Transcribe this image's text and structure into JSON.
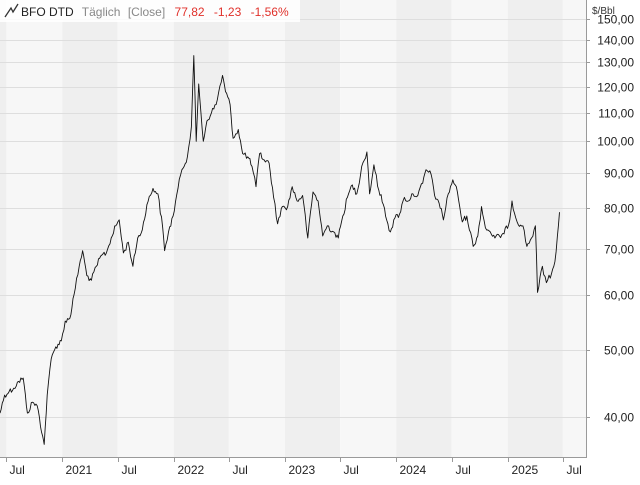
{
  "header": {
    "symbol": "BFO DTD",
    "interval": "Täglich",
    "mode": "[Close]",
    "last": "77,82",
    "change": "-1,23",
    "change_pct": "-1,56%",
    "unit": "$/Bbl"
  },
  "colors": {
    "negative": "#e0302a",
    "muted": "#888888",
    "line": "#111111",
    "band_dark": "#efefef",
    "band_light": "#f7f7f7",
    "grid": "#dedede"
  },
  "chart_data": {
    "type": "line",
    "title": "BFO DTD",
    "ylabel": "$/Bbl",
    "y_scale": "log",
    "ylim": [
      35,
      160
    ],
    "y_ticks": [
      40,
      50,
      60,
      70,
      80,
      90,
      100,
      110,
      120,
      130,
      140,
      150
    ],
    "y_tick_labels": [
      "40,00",
      "50,00",
      "60,00",
      "70,00",
      "80,00",
      "90,00",
      "100,00",
      "110,00",
      "120,00",
      "130,00",
      "140,00",
      "150,00"
    ],
    "x_ticks": [
      {
        "date": "2020-07-01",
        "label": "Jul"
      },
      {
        "date": "2021-01-01",
        "label": "2021"
      },
      {
        "date": "2021-07-01",
        "label": "Jul"
      },
      {
        "date": "2022-01-01",
        "label": "2022"
      },
      {
        "date": "2022-07-01",
        "label": "Jul"
      },
      {
        "date": "2023-01-01",
        "label": "2023"
      },
      {
        "date": "2023-07-01",
        "label": "Jul"
      },
      {
        "date": "2024-01-01",
        "label": "2024"
      },
      {
        "date": "2024-07-01",
        "label": "Jul"
      },
      {
        "date": "2025-01-01",
        "label": "2025"
      },
      {
        "date": "2025-07-01",
        "label": "Jul"
      }
    ],
    "xlim": [
      "2020-06-10",
      "2025-09-15"
    ],
    "series": [
      {
        "values": [
          [
            "2020-06-10",
            40.5
          ],
          [
            "2020-06-25",
            43.0
          ],
          [
            "2020-07-10",
            43.5
          ],
          [
            "2020-07-25",
            44.0
          ],
          [
            "2020-08-10",
            45.0
          ],
          [
            "2020-08-25",
            45.5
          ],
          [
            "2020-09-08",
            40.5
          ],
          [
            "2020-09-25",
            42.0
          ],
          [
            "2020-10-10",
            41.5
          ],
          [
            "2020-10-28",
            37.5
          ],
          [
            "2020-11-02",
            36.5
          ],
          [
            "2020-11-12",
            43.0
          ],
          [
            "2020-11-25",
            48.5
          ],
          [
            "2020-12-10",
            50.5
          ],
          [
            "2020-12-28",
            51.5
          ],
          [
            "2021-01-10",
            55.0
          ],
          [
            "2021-01-25",
            55.5
          ],
          [
            "2021-02-08",
            60.0
          ],
          [
            "2021-02-25",
            66.0
          ],
          [
            "2021-03-08",
            69.5
          ],
          [
            "2021-03-22",
            64.0
          ],
          [
            "2021-04-06",
            63.0
          ],
          [
            "2021-04-22",
            66.0
          ],
          [
            "2021-05-10",
            68.5
          ],
          [
            "2021-05-25",
            69.0
          ],
          [
            "2021-06-10",
            72.5
          ],
          [
            "2021-06-25",
            75.5
          ],
          [
            "2021-07-06",
            77.0
          ],
          [
            "2021-07-20",
            69.0
          ],
          [
            "2021-08-05",
            71.5
          ],
          [
            "2021-08-20",
            66.0
          ],
          [
            "2021-09-05",
            72.5
          ],
          [
            "2021-09-20",
            74.5
          ],
          [
            "2021-10-05",
            81.0
          ],
          [
            "2021-10-25",
            85.5
          ],
          [
            "2021-11-10",
            84.0
          ],
          [
            "2021-11-26",
            75.0
          ],
          [
            "2021-12-02",
            69.5
          ],
          [
            "2021-12-15",
            74.0
          ],
          [
            "2021-12-30",
            78.0
          ],
          [
            "2022-01-15",
            85.5
          ],
          [
            "2022-01-28",
            91.0
          ],
          [
            "2022-02-15",
            95.0
          ],
          [
            "2022-02-28",
            105.0
          ],
          [
            "2022-03-08",
            133.0
          ],
          [
            "2022-03-16",
            100.0
          ],
          [
            "2022-03-24",
            121.0
          ],
          [
            "2022-04-08",
            100.0
          ],
          [
            "2022-04-20",
            107.0
          ],
          [
            "2022-05-05",
            110.0
          ],
          [
            "2022-05-20",
            113.0
          ],
          [
            "2022-06-10",
            124.5
          ],
          [
            "2022-06-20",
            118.0
          ],
          [
            "2022-07-05",
            113.0
          ],
          [
            "2022-07-15",
            101.0
          ],
          [
            "2022-08-01",
            104.0
          ],
          [
            "2022-08-15",
            96.0
          ],
          [
            "2022-09-01",
            95.0
          ],
          [
            "2022-09-15",
            92.0
          ],
          [
            "2022-09-28",
            86.0
          ],
          [
            "2022-10-10",
            96.0
          ],
          [
            "2022-10-25",
            94.0
          ],
          [
            "2022-11-10",
            93.0
          ],
          [
            "2022-11-25",
            83.0
          ],
          [
            "2022-12-08",
            76.0
          ],
          [
            "2022-12-20",
            80.0
          ],
          [
            "2023-01-10",
            80.5
          ],
          [
            "2023-01-25",
            86.0
          ],
          [
            "2023-02-10",
            82.0
          ],
          [
            "2023-02-28",
            83.5
          ],
          [
            "2023-03-17",
            72.5
          ],
          [
            "2023-04-03",
            84.5
          ],
          [
            "2023-04-20",
            82.0
          ],
          [
            "2023-05-05",
            73.0
          ],
          [
            "2023-05-20",
            75.5
          ],
          [
            "2023-06-10",
            74.0
          ],
          [
            "2023-06-25",
            72.5
          ],
          [
            "2023-07-10",
            78.0
          ],
          [
            "2023-07-25",
            83.0
          ],
          [
            "2023-08-10",
            86.5
          ],
          [
            "2023-08-25",
            84.0
          ],
          [
            "2023-09-10",
            92.0
          ],
          [
            "2023-09-27",
            96.5
          ],
          [
            "2023-10-06",
            84.0
          ],
          [
            "2023-10-20",
            92.5
          ],
          [
            "2023-11-05",
            85.0
          ],
          [
            "2023-11-20",
            81.0
          ],
          [
            "2023-12-05",
            76.0
          ],
          [
            "2023-12-13",
            74.0
          ],
          [
            "2023-12-28",
            77.5
          ],
          [
            "2024-01-12",
            78.5
          ],
          [
            "2024-01-28",
            83.0
          ],
          [
            "2024-02-10",
            82.0
          ],
          [
            "2024-02-25",
            84.0
          ],
          [
            "2024-03-12",
            83.5
          ],
          [
            "2024-03-28",
            87.0
          ],
          [
            "2024-04-08",
            91.0
          ],
          [
            "2024-04-25",
            89.5
          ],
          [
            "2024-05-10",
            82.5
          ],
          [
            "2024-05-28",
            80.0
          ],
          [
            "2024-06-04",
            77.0
          ],
          [
            "2024-06-20",
            84.0
          ],
          [
            "2024-07-05",
            88.0
          ],
          [
            "2024-07-20",
            84.5
          ],
          [
            "2024-08-05",
            76.5
          ],
          [
            "2024-08-20",
            78.0
          ],
          [
            "2024-09-10",
            70.5
          ],
          [
            "2024-09-25",
            73.0
          ],
          [
            "2024-10-07",
            80.5
          ],
          [
            "2024-10-20",
            75.0
          ],
          [
            "2024-11-05",
            74.0
          ],
          [
            "2024-11-20",
            72.5
          ],
          [
            "2024-12-05",
            73.0
          ],
          [
            "2024-12-20",
            73.5
          ],
          [
            "2025-01-08",
            77.0
          ],
          [
            "2025-01-15",
            82.0
          ],
          [
            "2025-02-01",
            76.5
          ],
          [
            "2025-02-20",
            75.5
          ],
          [
            "2025-03-05",
            70.5
          ],
          [
            "2025-03-20",
            72.5
          ],
          [
            "2025-04-02",
            75.5
          ],
          [
            "2025-04-09",
            60.5
          ],
          [
            "2025-04-25",
            66.0
          ],
          [
            "2025-05-08",
            62.5
          ],
          [
            "2025-05-25",
            64.5
          ],
          [
            "2025-06-05",
            67.0
          ],
          [
            "2025-06-13",
            73.0
          ],
          [
            "2025-06-20",
            79.0
          ]
        ]
      }
    ]
  }
}
